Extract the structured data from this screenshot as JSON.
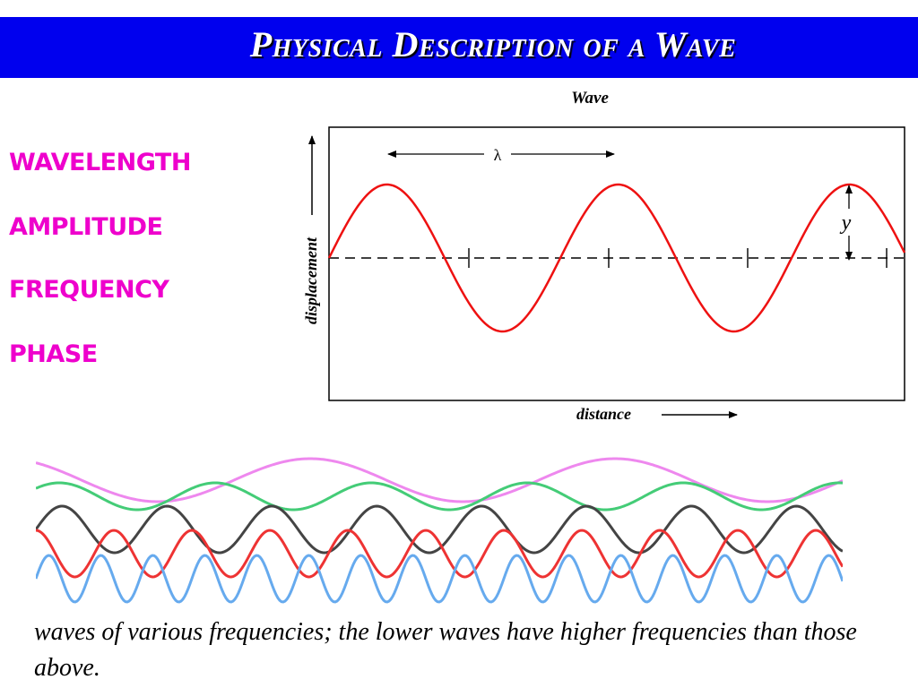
{
  "title": "Physical Description of a Wave",
  "terms": [
    "Wavelength",
    "Amplitude",
    "Frequency",
    "Phase"
  ],
  "diagram": {
    "title": "Wave",
    "xlabel": "distance",
    "ylabel": "displacement",
    "wavelength_label": "λ",
    "amplitude_label": "y"
  },
  "caption": "waves of various frequencies; the lower waves have higher frequencies than those above.",
  "colors": {
    "title_bar": "#0000ee",
    "term_text": "#ee00cc",
    "wave": "#ee1111",
    "frequency_waves": [
      "#ee88ee",
      "#44cc77",
      "#444444",
      "#ee3333",
      "#66aaee"
    ]
  }
}
